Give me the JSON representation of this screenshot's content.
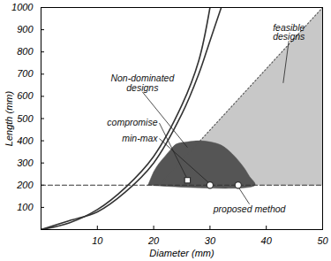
{
  "chart_data": {
    "type": "line",
    "x_label": "Diameter (mm)",
    "y_label": "Length (mm)",
    "xlim": [
      0,
      50
    ],
    "ylim": [
      0,
      1000
    ],
    "xticks": [
      10,
      20,
      30,
      40,
      50
    ],
    "yticks": [
      100,
      200,
      300,
      400,
      500,
      600,
      700,
      800,
      900,
      1000
    ],
    "series": [
      {
        "type": "area",
        "color": "#c8c8c8",
        "x": [
          21,
          50,
          50
        ],
        "values": [
          200,
          1000,
          200
        ]
      },
      {
        "type": "area",
        "color": "#555555",
        "x": [
          19,
          20,
          21,
          22,
          23,
          24,
          26,
          28,
          30,
          32,
          34,
          36,
          37,
          38
        ],
        "values": [
          200,
          260,
          300,
          330,
          360,
          385,
          395,
          400,
          395,
          380,
          340,
          280,
          240,
          200
        ]
      },
      {
        "type": "line",
        "color": "#333333",
        "line_style": "solid",
        "x": [
          0,
          5,
          10,
          15,
          20,
          25,
          28,
          30,
          32
        ],
        "values": [
          0,
          40,
          80,
          170,
          300,
          520,
          700,
          850,
          1000
        ]
      },
      {
        "type": "line",
        "color": "#333333",
        "line_style": "solid",
        "x": [
          0,
          5,
          10,
          15,
          20,
          25,
          28,
          30
        ],
        "values": [
          0,
          30,
          90,
          190,
          330,
          560,
          760,
          1000
        ]
      },
      {
        "type": "line",
        "color": "#333333",
        "line_style": "dashed",
        "x": [
          0,
          50
        ],
        "values": [
          200,
          200
        ]
      },
      {
        "type": "line",
        "color": "#555555",
        "line_style": "dotted",
        "x": [
          21,
          50
        ],
        "values": [
          200,
          1000
        ]
      },
      {
        "type": "scatter",
        "color": "#333333",
        "marker": "square",
        "x": [
          26
        ],
        "values": [
          222
        ]
      },
      {
        "type": "scatter",
        "color": "#333333",
        "marker": "circle",
        "x": [
          30,
          35
        ],
        "values": [
          200,
          200
        ]
      }
    ],
    "annotations": [
      {
        "text": "feasible\ndesigns",
        "x": 44,
        "y": 850,
        "point_to": [
          43,
          660
        ]
      },
      {
        "text": "Non-dominated\ndesigns",
        "x": 18,
        "y": 620,
        "point_to": [
          26,
          370
        ]
      },
      {
        "text": "compromise",
        "x": 21,
        "y": 480,
        "point_to": [
          26,
          226
        ]
      },
      {
        "text": "min-max",
        "x": 21,
        "y": 410,
        "point_to": [
          30,
          206
        ]
      },
      {
        "text": "proposed method",
        "x": 37,
        "y": 115,
        "point_to": [
          35,
          193
        ]
      }
    ]
  }
}
